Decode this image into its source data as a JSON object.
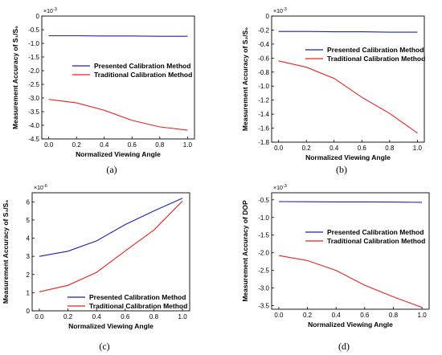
{
  "chart_data": [
    {
      "type": "line",
      "panel_label": "(a)",
      "xlabel": "Normalized Viewing Angle",
      "ylabel": "Measurement Accuracy of S₁/S₀",
      "multiplier": {
        "base": "×10",
        "exp": "-3"
      },
      "xlim": [
        -0.05,
        1.05
      ],
      "ylim": [
        -4.5,
        0
      ],
      "x_ticks": [
        0.0,
        0.2,
        0.4,
        0.6,
        0.8,
        1.0
      ],
      "x_tick_labels": [
        "0.0",
        "0.2",
        "0.4",
        "0.6",
        "0.8",
        "1.0"
      ],
      "y_ticks": [
        0,
        -0.5,
        -1.0,
        -1.5,
        -2.0,
        -2.5,
        -3.0,
        -3.5,
        -4.0,
        -4.5
      ],
      "y_tick_labels": [
        "0",
        "-0.5",
        "-1.0",
        "-1.5",
        "-2.0",
        "-2.5",
        "-3.0",
        "-3.5",
        "-4.0",
        "-4.5"
      ],
      "legend_position": "middle-left",
      "series": [
        {
          "name": "Presented Calibration Method",
          "color": "#1f1fb4",
          "x": [
            0.0,
            0.2,
            0.4,
            0.6,
            0.8,
            1.0
          ],
          "y": [
            -0.72,
            -0.72,
            -0.73,
            -0.73,
            -0.74,
            -0.74
          ]
        },
        {
          "name": "Traditional Calibration Method",
          "color": "#e8231f",
          "x": [
            0.0,
            0.2,
            0.4,
            0.6,
            0.8,
            1.0
          ],
          "y": [
            -3.05,
            -3.18,
            -3.45,
            -3.82,
            -4.06,
            -4.18
          ]
        }
      ]
    },
    {
      "type": "line",
      "panel_label": "(b)",
      "xlabel": "Normalized Viewing Angle",
      "ylabel": "Measurement Accuracy of S₂/S₀",
      "multiplier": {
        "base": "×10",
        "exp": "-3"
      },
      "xlim": [
        -0.05,
        1.05
      ],
      "ylim": [
        -1.8,
        0
      ],
      "x_ticks": [
        0.0,
        0.2,
        0.4,
        0.6,
        0.8,
        1.0
      ],
      "x_tick_labels": [
        "0.0",
        "0.2",
        "0.4",
        "0.6",
        "0.8",
        "1.0"
      ],
      "y_ticks": [
        0,
        -0.2,
        -0.4,
        -0.6,
        -0.8,
        -1.0,
        -1.2,
        -1.4,
        -1.6,
        -1.8
      ],
      "y_tick_labels": [
        "0",
        "-0.2",
        "-0.4",
        "-0.6",
        "-0.8",
        "-1.0",
        "-1.2",
        "-1.4",
        "-1.6",
        "-1.8"
      ],
      "legend_position": "top-right",
      "series": [
        {
          "name": "Presented Calibration Method",
          "color": "#1f1fb4",
          "x": [
            0.0,
            0.2,
            0.4,
            0.6,
            0.8,
            1.0
          ],
          "y": [
            -0.22,
            -0.22,
            -0.225,
            -0.225,
            -0.23,
            -0.23
          ]
        },
        {
          "name": "Traditional Calibration Method",
          "color": "#e8231f",
          "x": [
            0.0,
            0.2,
            0.4,
            0.6,
            0.8,
            1.0
          ],
          "y": [
            -0.64,
            -0.73,
            -0.89,
            -1.16,
            -1.39,
            -1.67
          ]
        }
      ]
    },
    {
      "type": "line",
      "panel_label": "(c)",
      "xlabel": "Normalized Viewing Angle",
      "ylabel": "Measurement Accuracy of S₃/S₀",
      "multiplier": {
        "base": "×10",
        "exp": "-6"
      },
      "xlim": [
        -0.05,
        1.05
      ],
      "ylim": [
        0,
        6.5
      ],
      "x_ticks": [
        0.0,
        0.2,
        0.4,
        0.6,
        0.8,
        1.0
      ],
      "x_tick_labels": [
        "0.0",
        "0.2",
        "0.4",
        "0.6",
        "0.8",
        "1.0"
      ],
      "y_ticks": [
        0,
        1,
        2,
        3,
        4,
        5,
        6
      ],
      "y_tick_labels": [
        "0",
        "1",
        "2",
        "3",
        "4",
        "5",
        "6"
      ],
      "legend_position": "bottom-right",
      "series": [
        {
          "name": "Presented Calibration Method",
          "color": "#1f1fb4",
          "x": [
            0.0,
            0.2,
            0.4,
            0.6,
            0.8,
            1.0
          ],
          "y": [
            3.0,
            3.28,
            3.85,
            4.75,
            5.5,
            6.2
          ]
        },
        {
          "name": "Traditional Calibration Method",
          "color": "#e8231f",
          "x": [
            0.0,
            0.2,
            0.4,
            0.6,
            0.8,
            1.0
          ],
          "y": [
            1.05,
            1.4,
            2.12,
            3.3,
            4.45,
            6.05
          ]
        }
      ]
    },
    {
      "type": "line",
      "panel_label": "(d)",
      "xlabel": "Normalized Viewing Angle",
      "ylabel": "Measurement Accuracy of DOP",
      "multiplier": {
        "base": "×10",
        "exp": "-3"
      },
      "xlim": [
        -0.05,
        1.05
      ],
      "ylim": [
        -3.6,
        -0.3
      ],
      "x_ticks": [
        0.0,
        0.2,
        0.4,
        0.6,
        0.8,
        1.0
      ],
      "x_tick_labels": [
        "0.0",
        "0.2",
        "0.4",
        "0.6",
        "0.8",
        "1.0"
      ],
      "y_ticks": [
        -0.5,
        -1.0,
        -1.5,
        -2.0,
        -2.5,
        -3.0,
        -3.5
      ],
      "y_tick_labels": [
        "-0.5",
        "-1.0",
        "-1.5",
        "-2.0",
        "-2.5",
        "-3.0",
        "-3.5"
      ],
      "legend_position": "top-right",
      "series": [
        {
          "name": "Presented Calibration Method",
          "color": "#1f1fb4",
          "x": [
            0.0,
            0.2,
            0.4,
            0.6,
            0.8,
            1.0
          ],
          "y": [
            -0.55,
            -0.555,
            -0.56,
            -0.56,
            -0.565,
            -0.57
          ]
        },
        {
          "name": "Traditional Calibration Method",
          "color": "#e8231f",
          "x": [
            0.0,
            0.2,
            0.4,
            0.6,
            0.8,
            1.0
          ],
          "y": [
            -2.08,
            -2.22,
            -2.5,
            -2.92,
            -3.25,
            -3.55
          ]
        }
      ]
    }
  ]
}
